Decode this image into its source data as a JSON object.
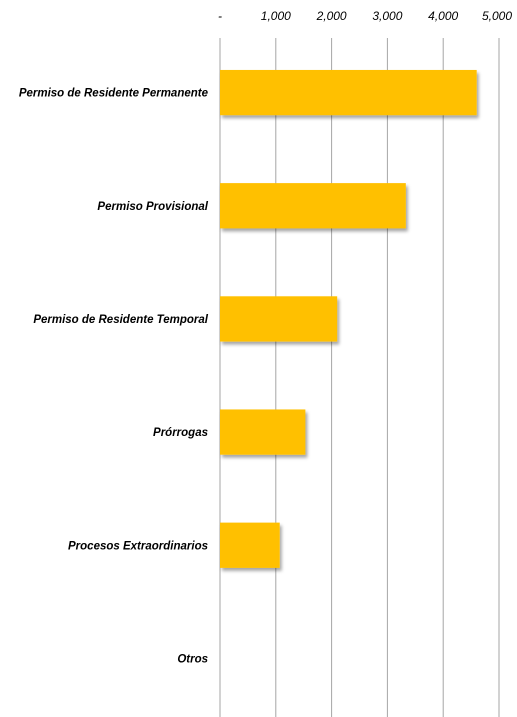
{
  "chart_data": {
    "type": "bar",
    "orientation": "horizontal",
    "title": "",
    "xlabel": "",
    "ylabel": "",
    "categories": [
      "Permiso de Residente Permanente",
      "Permiso Provisional",
      "Permiso de Residente Temporal",
      "Prórrogas",
      "Procesos Extraordinarios",
      "Otros"
    ],
    "values": [
      4600,
      3330,
      2100,
      1530,
      1070,
      0
    ],
    "xlim": [
      0,
      5000
    ],
    "x_ticks": [
      0,
      1000,
      2000,
      3000,
      4000,
      5000
    ],
    "x_tick_labels": [
      "-",
      "1,000",
      "2,000",
      "3,000",
      "4,000",
      "5,000"
    ],
    "axis_position": "top",
    "grid": true,
    "legend": "none",
    "bar_color": "#FFC000",
    "grid_color": "#A6A6A6"
  }
}
